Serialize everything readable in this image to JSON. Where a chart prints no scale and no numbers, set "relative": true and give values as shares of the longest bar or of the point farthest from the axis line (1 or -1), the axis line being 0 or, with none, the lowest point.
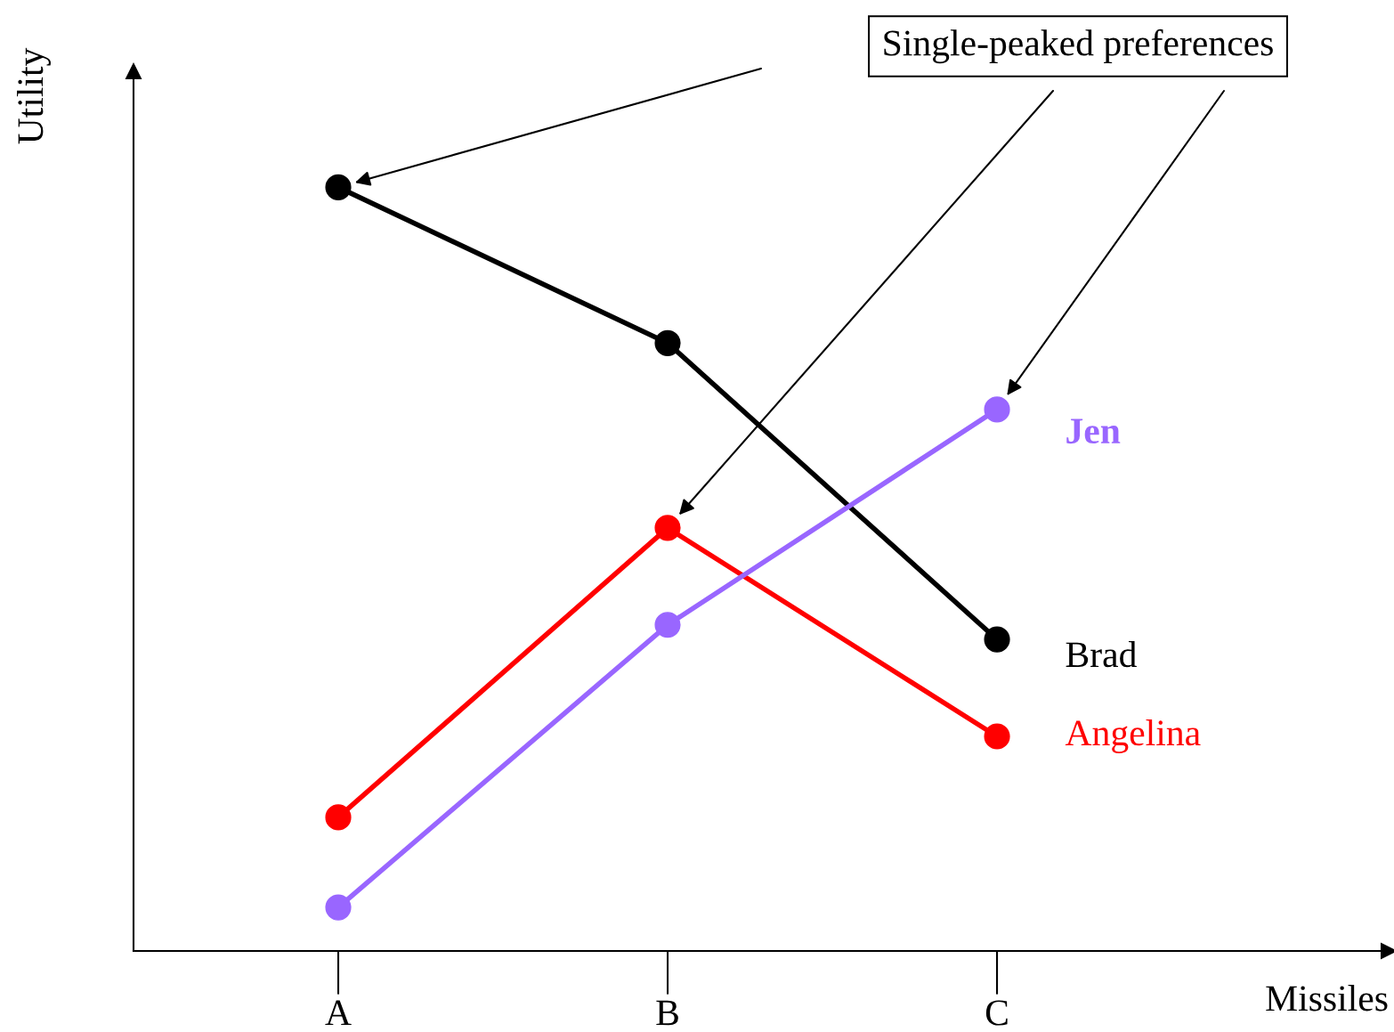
{
  "chart_data": {
    "type": "line",
    "relative": true,
    "xlabel": "Missiles",
    "ylabel": "Utility",
    "categories": [
      "A",
      "B",
      "C"
    ],
    "series": [
      {
        "name": "Brad",
        "color": "#000000",
        "values": [
          1,
          0.796,
          0.408
        ]
      },
      {
        "name": "Angelina",
        "color": "#ff0000",
        "values": [
          0.175,
          0.554,
          0.281
        ]
      },
      {
        "name": "Jen",
        "color": "#9966ff",
        "values": [
          0.057,
          0.427,
          0.709
        ]
      }
    ],
    "annotations": [
      "Single-peaked preferences"
    ],
    "marker": "circle",
    "line_style": "solid",
    "legend": false,
    "grid": false
  }
}
